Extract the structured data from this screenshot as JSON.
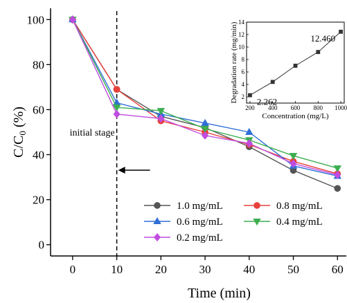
{
  "chart_data": [
    {
      "type": "line",
      "title": "",
      "xlabel": "Time (min)",
      "ylabel": "C/C0 (%)",
      "ylabel_parts": {
        "main": "C/C",
        "sub": "0",
        "unit": " (%)"
      },
      "xlim": [
        -5,
        62
      ],
      "ylim": [
        -5,
        105
      ],
      "xticks": [
        0,
        10,
        20,
        30,
        40,
        50,
        60
      ],
      "yticks": [
        0,
        20,
        40,
        60,
        80,
        100
      ],
      "x": [
        0,
        10,
        20,
        30,
        40,
        50,
        60
      ],
      "series": [
        {
          "name": "1.0 mg/mL",
          "color": "#555555",
          "marker": "circle",
          "values": [
            100,
            69,
            57,
            52,
            43.5,
            33,
            25
          ]
        },
        {
          "name": "0.8 mg/mL",
          "color": "#e8403a",
          "marker": "circle",
          "values": [
            100,
            69,
            55,
            50,
            44.5,
            37,
            31.5
          ]
        },
        {
          "name": "0.6 mg/mL",
          "color": "#2f6fd6",
          "marker": "triangle-up",
          "values": [
            100,
            63,
            58,
            54,
            50,
            35,
            30.5
          ]
        },
        {
          "name": "0.4 mg/mL",
          "color": "#3cae50",
          "marker": "triangle-down",
          "values": [
            100,
            61,
            59.5,
            51.5,
            46.5,
            39.5,
            34
          ]
        },
        {
          "name": "0.2 mg/mL",
          "color": "#c04de0",
          "marker": "diamond",
          "values": [
            100,
            58,
            56,
            48.5,
            45,
            36,
            31
          ]
        }
      ],
      "annotations": [
        {
          "text": "initial stage",
          "x": 10
        }
      ],
      "grid": false,
      "legend_position": "bottom-right"
    },
    {
      "type": "line",
      "title": "",
      "xlabel": "Concentration (mg/L)",
      "ylabel": "Degradation rate (mg/min)",
      "xlim": [
        170,
        1030
      ],
      "ylim": [
        1,
        14
      ],
      "xticks": [
        200,
        400,
        600,
        800,
        1000
      ],
      "yticks": [
        2,
        4,
        6,
        8,
        10,
        12,
        14
      ],
      "x": [
        200,
        400,
        600,
        800,
        1000
      ],
      "series": [
        {
          "color": "#333333",
          "marker": "square",
          "values": [
            2.262,
            4.4,
            7.0,
            9.2,
            12.46
          ]
        }
      ],
      "annotations": [
        {
          "text": "2.262",
          "x": 200,
          "y": 2.262
        },
        {
          "text": "12.460",
          "x": 1000,
          "y": 12.46
        }
      ],
      "grid": false,
      "legend_position": "none"
    }
  ]
}
